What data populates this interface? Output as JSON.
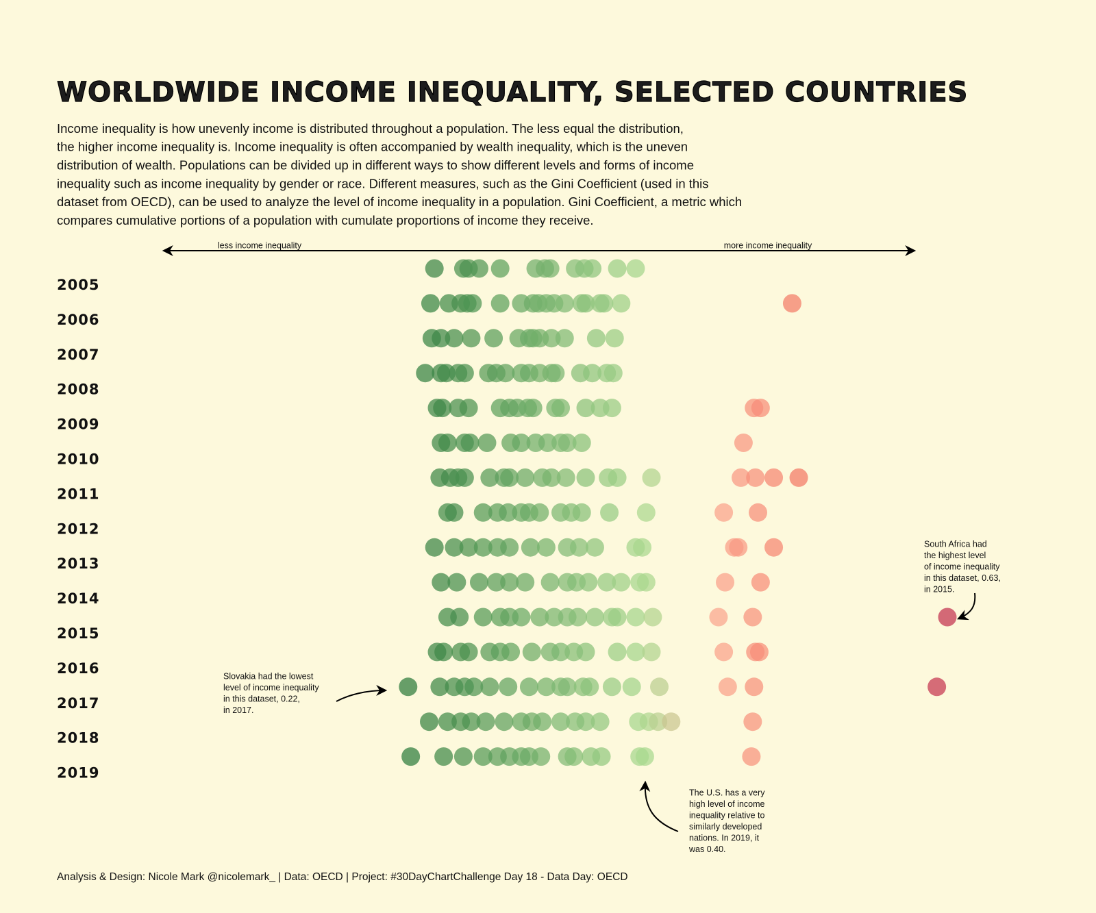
{
  "chart_data": {
    "type": "strip",
    "title": "WORLDWIDE INCOME INEQUALITY, SELECTED COUNTRIES",
    "description": [
      "Income inequality is how unevenly income is distributed throughout a population. The less equal the distribution,",
      "the higher income inequality is. Income inequality is often accompanied by wealth inequality, which is the uneven",
      "distribution of wealth. Populations can be divided up in different ways to show different levels and forms of income",
      "inequality such as income inequality by gender or race. Different measures, such as the Gini Coefficient (used in this",
      "dataset from OECD), can be used to analyze the level of income inequality in a population. Gini Coefficient, a metric which",
      "compares cumulative portions of a population with cumulate proportions of income they receive."
    ],
    "axis_left_label": "less income inequality",
    "axis_right_label": "more income inequality",
    "categories": [
      "2005",
      "2006",
      "2007",
      "2008",
      "2009",
      "2010",
      "2011",
      "2012",
      "2013",
      "2014",
      "2015",
      "2016",
      "2017",
      "2018",
      "2019"
    ],
    "values": [
      [
        0.24,
        0.262,
        0.266,
        0.274,
        0.29,
        0.317,
        0.324,
        0.328,
        0.347,
        0.354,
        0.36,
        0.379,
        0.393
      ],
      [
        0.237,
        0.251,
        0.26,
        0.265,
        0.269,
        0.29,
        0.306,
        0.315,
        0.319,
        0.325,
        0.331,
        0.339,
        0.352,
        0.355,
        0.366,
        0.369,
        0.382,
        0.512
      ],
      [
        0.238,
        0.245,
        0.255,
        0.268,
        0.285,
        0.304,
        0.312,
        0.315,
        0.32,
        0.329,
        0.339,
        0.363,
        0.377
      ],
      [
        0.233,
        0.245,
        0.249,
        0.258,
        0.263,
        0.281,
        0.287,
        0.294,
        0.306,
        0.312,
        0.32,
        0.329,
        0.332,
        0.351,
        0.36,
        0.371,
        0.376
      ],
      [
        0.242,
        0.246,
        0.258,
        0.266,
        0.29,
        0.297,
        0.303,
        0.311,
        0.315,
        0.332,
        0.336,
        0.355,
        0.366,
        0.375,
        0.483,
        0.488
      ],
      [
        0.245,
        0.25,
        0.263,
        0.267,
        0.28,
        0.298,
        0.306,
        0.317,
        0.326,
        0.336,
        0.341,
        0.352,
        0.475
      ],
      [
        0.244,
        0.252,
        0.258,
        0.263,
        0.282,
        0.293,
        0.297,
        0.309,
        0.322,
        0.329,
        0.34,
        0.355,
        0.372,
        0.379,
        0.405,
        0.473,
        0.484,
        0.498,
        0.517
      ],
      [
        0.25,
        0.255,
        0.277,
        0.288,
        0.296,
        0.306,
        0.312,
        0.32,
        0.336,
        0.344,
        0.352,
        0.373,
        0.401,
        0.46,
        0.486
      ],
      [
        0.24,
        0.255,
        0.266,
        0.277,
        0.288,
        0.297,
        0.313,
        0.325,
        0.341,
        0.35,
        0.362,
        0.393,
        0.398,
        0.468,
        0.471,
        0.498
      ],
      [
        0.245,
        0.257,
        0.274,
        0.287,
        0.297,
        0.309,
        0.328,
        0.341,
        0.348,
        0.357,
        0.371,
        0.382,
        0.396,
        0.401,
        0.461,
        0.488
      ],
      [
        0.25,
        0.259,
        0.277,
        0.29,
        0.297,
        0.306,
        0.32,
        0.331,
        0.341,
        0.349,
        0.362,
        0.375,
        0.379,
        0.393,
        0.406,
        0.456,
        0.482,
        0.63
      ],
      [
        0.242,
        0.247,
        0.26,
        0.266,
        0.282,
        0.29,
        0.298,
        0.314,
        0.328,
        0.336,
        0.346,
        0.355,
        0.379,
        0.393,
        0.405,
        0.46,
        0.484,
        0.487
      ],
      [
        0.22,
        0.244,
        0.255,
        0.263,
        0.27,
        0.282,
        0.296,
        0.312,
        0.325,
        0.336,
        0.341,
        0.353,
        0.358,
        0.375,
        0.39,
        0.411,
        0.463,
        0.483,
        0.622
      ],
      [
        0.236,
        0.25,
        0.26,
        0.268,
        0.279,
        0.293,
        0.306,
        0.314,
        0.322,
        0.336,
        0.347,
        0.355,
        0.366,
        0.395,
        0.403,
        0.41,
        0.42,
        0.482
      ],
      [
        0.222,
        0.247,
        0.262,
        0.277,
        0.288,
        0.297,
        0.306,
        0.312,
        0.321,
        0.341,
        0.346,
        0.359,
        0.367,
        0.396,
        0.4,
        0.481
      ]
    ],
    "xlim": [
      0.03,
      0.68
    ],
    "colorscale": [
      {
        "value": 0.22,
        "color": "#2c7a3c"
      },
      {
        "value": 0.4,
        "color": "#a8d88f"
      },
      {
        "value": 0.45,
        "color": "#fba892"
      },
      {
        "value": 0.52,
        "color": "#f27563"
      },
      {
        "value": 0.63,
        "color": "#c2304f"
      }
    ],
    "annotations": [
      [
        "South Africa had",
        "the highest level",
        "of income inequality",
        "in this dataset, 0.63,",
        "in 2015."
      ],
      [
        "Slovakia had the lowest",
        "level of income inequality",
        "in this dataset, 0.22,",
        "in 2017."
      ],
      [
        "The U.S. has a very",
        "high level of income",
        "inequality relative to",
        "similarly developed",
        "nations. In 2019, it",
        "was 0.40."
      ]
    ],
    "footer": "Analysis & Design: Nicole Mark @nicolemark_ | Data: OECD | Project: #30DayChartChallenge Day 18 - Data Day: OECD"
  }
}
